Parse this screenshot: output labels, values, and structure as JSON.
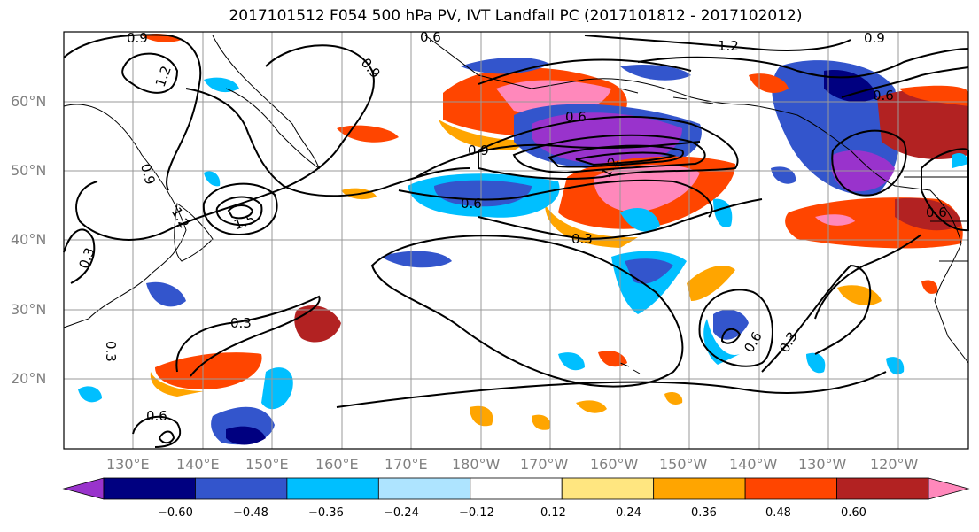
{
  "title": "2017101512 F054 500 hPa PV, IVT Landfall PC (2017101812 - 2017102012)",
  "lat_labels": [
    "60°N",
    "50°N",
    "40°N",
    "30°N",
    "20°N"
  ],
  "lon_labels": [
    "130°E",
    "140°E",
    "150°E",
    "160°E",
    "170°E",
    "180°W",
    "170°W",
    "160°W",
    "150°W",
    "140°W",
    "130°W",
    "120°W"
  ],
  "contour_labels": [
    "0.9",
    "0.6",
    "1.2",
    "1.2",
    "0.9",
    "0.9",
    "0.9",
    "0.6",
    "1.2",
    "1.5",
    "0.6",
    "0.9",
    "0.6",
    "0.3",
    "0.3",
    "0.3",
    "0.6",
    "0.6",
    "0.3",
    "0.3",
    "0.6",
    "1.2"
  ],
  "colorbar": {
    "ticks": [
      "−0.60",
      "−0.48",
      "−0.36",
      "−0.24",
      "−0.12",
      "0.12",
      "0.24",
      "0.36",
      "0.48",
      "0.60"
    ],
    "colors": [
      "#9933cc",
      "#000080",
      "#3355cc",
      "#00bfff",
      "#aee4ff",
      "#ffffff",
      "#ffe680",
      "#ffa500",
      "#ff4500",
      "#b22222",
      "#ff88bb"
    ]
  },
  "colors": {
    "frame": "#000000",
    "grid": "#999999",
    "axis_label": "#808080"
  }
}
